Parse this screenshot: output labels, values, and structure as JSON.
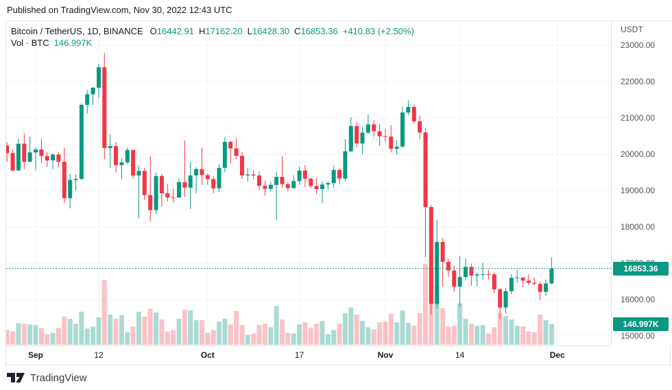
{
  "published_bar": {
    "text": "Published on TradingView.com, Nov 30, 2022 12:43 UTC"
  },
  "legend": {
    "symbol": "Bitcoin / TetherUS, 1D, BINANCE",
    "items": [
      {
        "label": "O",
        "value": "16442.91"
      },
      {
        "label": "H",
        "value": "17162.20"
      },
      {
        "label": "L",
        "value": "16428.30"
      },
      {
        "label": "C",
        "value": "16853.36"
      }
    ],
    "change": "+410.83 (+2.50%)",
    "volume_label": "Vol · BTC",
    "volume_value": "146.997K"
  },
  "price_axis": {
    "currency": "USDT",
    "price_badge": "16853.36",
    "volume_badge": "146.997K"
  },
  "time_axis": {
    "ticks": [
      {
        "label": "Sep",
        "bold": true,
        "day_offset": 0
      },
      {
        "label": "12",
        "bold": false,
        "day_offset": 11
      },
      {
        "label": "Oct",
        "bold": true,
        "day_offset": 30
      },
      {
        "label": "17",
        "bold": false,
        "day_offset": 46
      },
      {
        "label": "Nov",
        "bold": true,
        "day_offset": 61
      },
      {
        "label": "14",
        "bold": false,
        "day_offset": 74
      },
      {
        "label": "Dec",
        "bold": true,
        "day_offset": 91
      }
    ]
  },
  "footer": {
    "brand": "TradingView"
  },
  "colors": {
    "up": "#089981",
    "down": "#f23645",
    "vol_up": "rgba(8,153,129,0.35)",
    "vol_down": "rgba(242,54,69,0.30)",
    "badge": "#089981",
    "grid": "#f0f3fa",
    "border": "#e0e3eb",
    "axis_text": "#4c525e",
    "dark_text": "#131722"
  },
  "chart_data": {
    "type": "candlestick+volume",
    "title": "Bitcoin / TetherUS, 1D, BINANCE",
    "quote_currency": "USDT",
    "ylim": [
      15000,
      23000
    ],
    "y_ticks": [
      23000,
      22000,
      21000,
      20000,
      19000,
      18000,
      17000,
      16000,
      15000
    ],
    "grid": true,
    "last_price": 16853.36,
    "last_ohlc": {
      "o": 16442.91,
      "h": 17162.2,
      "l": 16428.3,
      "c": 16853.36,
      "change": "+410.83 (+2.50%)"
    },
    "last_volume_kBTC": 146.997,
    "columns": [
      "date",
      "open",
      "high",
      "low",
      "close",
      "volume_kBTC"
    ],
    "series": [
      [
        "Aug 27",
        20240,
        20330,
        19800,
        20030,
        105
      ],
      [
        "Aug 28",
        20030,
        20140,
        19520,
        19550,
        95
      ],
      [
        "Aug 29",
        19550,
        20430,
        19550,
        20290,
        155
      ],
      [
        "Aug 30",
        20290,
        20580,
        19590,
        19790,
        150
      ],
      [
        "Aug 31",
        19790,
        20490,
        19790,
        20050,
        145
      ],
      [
        "Sep 1",
        20050,
        20200,
        19561,
        20130,
        140
      ],
      [
        "Sep 2",
        20130,
        20440,
        19755,
        19950,
        120
      ],
      [
        "Sep 3",
        19950,
        20055,
        19660,
        19830,
        75
      ],
      [
        "Sep 4",
        19830,
        20025,
        19588,
        19990,
        85
      ],
      [
        "Sep 5",
        19990,
        20060,
        19635,
        19790,
        120
      ],
      [
        "Sep 6",
        19790,
        20180,
        18654,
        18790,
        200
      ],
      [
        "Sep 7",
        18790,
        19460,
        18510,
        19290,
        185
      ],
      [
        "Sep 8",
        19290,
        19450,
        19000,
        19320,
        150
      ],
      [
        "Sep 9",
        19320,
        21400,
        19292,
        21360,
        235
      ],
      [
        "Sep 10",
        21360,
        21770,
        21120,
        21650,
        115
      ],
      [
        "Sep 11",
        21650,
        21850,
        21350,
        21830,
        130
      ],
      [
        "Sep 12",
        21830,
        22488,
        21550,
        22395,
        195
      ],
      [
        "Sep 13",
        22395,
        22799,
        19860,
        20170,
        460
      ],
      [
        "Sep 14",
        20170,
        20540,
        19620,
        20225,
        215
      ],
      [
        "Sep 15",
        20225,
        20330,
        19495,
        19700,
        185
      ],
      [
        "Sep 16",
        19700,
        19890,
        19320,
        19775,
        210
      ],
      [
        "Sep 17",
        19775,
        20180,
        19725,
        20115,
        90
      ],
      [
        "Sep 18",
        20115,
        20117,
        19330,
        19415,
        130
      ],
      [
        "Sep 19",
        19415,
        19690,
        18235,
        19540,
        235
      ],
      [
        "Sep 20",
        19540,
        19630,
        18740,
        18875,
        200
      ],
      [
        "Sep 21",
        18875,
        19950,
        18150,
        18460,
        255
      ],
      [
        "Sep 22",
        18460,
        19500,
        18360,
        19400,
        230
      ],
      [
        "Sep 23",
        19400,
        19460,
        18565,
        18925,
        180
      ],
      [
        "Sep 24",
        18925,
        19180,
        18700,
        18810,
        95
      ],
      [
        "Sep 25",
        18810,
        19055,
        18670,
        18805,
        105
      ],
      [
        "Sep 26",
        18805,
        19320,
        18805,
        19230,
        185
      ],
      [
        "Sep 27",
        19230,
        20380,
        18830,
        19080,
        250
      ],
      [
        "Sep 28",
        19080,
        19790,
        18490,
        19415,
        245
      ],
      [
        "Sep 29",
        19415,
        19640,
        18920,
        19590,
        175
      ],
      [
        "Sep 30",
        19590,
        20185,
        19160,
        19425,
        175
      ],
      [
        "Oct 1",
        19425,
        19480,
        19160,
        19315,
        85
      ],
      [
        "Oct 2",
        19315,
        19395,
        18920,
        19060,
        105
      ],
      [
        "Oct 3",
        19060,
        19720,
        18960,
        19625,
        165
      ],
      [
        "Oct 4",
        19625,
        20475,
        19500,
        20340,
        185
      ],
      [
        "Oct 5",
        20340,
        20365,
        19745,
        20160,
        145
      ],
      [
        "Oct 6",
        20160,
        20455,
        19870,
        19955,
        240
      ],
      [
        "Oct 7",
        19955,
        20060,
        19320,
        19415,
        140
      ],
      [
        "Oct 8",
        19415,
        19625,
        19240,
        19440,
        70
      ],
      [
        "Oct 9",
        19440,
        19560,
        19310,
        19415,
        80
      ],
      [
        "Oct 10",
        19415,
        19525,
        19020,
        19130,
        140
      ],
      [
        "Oct 11",
        19130,
        19270,
        18860,
        19045,
        150
      ],
      [
        "Oct 12",
        19045,
        19240,
        18965,
        19155,
        125
      ],
      [
        "Oct 13",
        19155,
        19510,
        18190,
        19375,
        275
      ],
      [
        "Oct 14",
        19375,
        19950,
        19070,
        19175,
        180
      ],
      [
        "Oct 15",
        19175,
        19225,
        18975,
        19065,
        85
      ],
      [
        "Oct 16",
        19065,
        19420,
        19060,
        19260,
        80
      ],
      [
        "Oct 17",
        19260,
        19670,
        19155,
        19550,
        145
      ],
      [
        "Oct 18",
        19550,
        19706,
        19100,
        19325,
        160
      ],
      [
        "Oct 19",
        19325,
        19357,
        19065,
        19125,
        120
      ],
      [
        "Oct 20",
        19125,
        19345,
        18905,
        19040,
        150
      ],
      [
        "Oct 21",
        19040,
        19250,
        18650,
        19165,
        170
      ],
      [
        "Oct 22",
        19165,
        19255,
        19025,
        19205,
        75
      ],
      [
        "Oct 23",
        19205,
        19695,
        19070,
        19570,
        105
      ],
      [
        "Oct 24",
        19570,
        19600,
        19175,
        19330,
        150
      ],
      [
        "Oct 25",
        19330,
        20415,
        19255,
        20080,
        225
      ],
      [
        "Oct 26",
        20080,
        21020,
        20055,
        20775,
        265
      ],
      [
        "Oct 27",
        20775,
        20875,
        20190,
        20295,
        215
      ],
      [
        "Oct 28",
        20295,
        20755,
        20000,
        20595,
        170
      ],
      [
        "Oct 29",
        20595,
        21085,
        20550,
        20820,
        125
      ],
      [
        "Oct 30",
        20820,
        20930,
        20480,
        20630,
        110
      ],
      [
        "Oct 31",
        20630,
        20840,
        20225,
        20495,
        160
      ],
      [
        "Nov 1",
        20495,
        20700,
        20330,
        20485,
        165
      ],
      [
        "Nov 2",
        20485,
        20800,
        20050,
        20150,
        220
      ],
      [
        "Nov 3",
        20150,
        20385,
        19990,
        20210,
        160
      ],
      [
        "Nov 4",
        20210,
        21300,
        20170,
        21150,
        245
      ],
      [
        "Nov 5",
        21150,
        21480,
        21070,
        21300,
        155
      ],
      [
        "Nov 6",
        21300,
        21360,
        20860,
        20905,
        135
      ],
      [
        "Nov 7",
        20905,
        21070,
        20410,
        20600,
        225
      ],
      [
        "Nov 8",
        20600,
        20700,
        17166,
        18545,
        575
      ],
      [
        "Nov 9",
        18545,
        18590,
        15588,
        15880,
        555
      ],
      [
        "Nov 10",
        15880,
        18199,
        15755,
        17585,
        415
      ],
      [
        "Nov 11",
        17585,
        17690,
        16361,
        17035,
        260
      ],
      [
        "Nov 12",
        17035,
        17115,
        16625,
        16800,
        130
      ],
      [
        "Nov 13",
        16800,
        16954,
        16229,
        16353,
        135
      ],
      [
        "Nov 14",
        16353,
        17190,
        15815,
        16620,
        295
      ],
      [
        "Nov 15",
        16620,
        17134,
        16530,
        16900,
        185
      ],
      [
        "Nov 16",
        16900,
        16990,
        16378,
        16660,
        150
      ],
      [
        "Nov 17",
        16660,
        16750,
        16360,
        16690,
        135
      ],
      [
        "Nov 18",
        16690,
        17011,
        16546,
        16700,
        140
      ],
      [
        "Nov 19",
        16700,
        16820,
        16550,
        16695,
        80
      ],
      [
        "Nov 20",
        16695,
        16746,
        16176,
        16280,
        125
      ],
      [
        "Nov 21",
        16280,
        16310,
        15476,
        15780,
        230
      ],
      [
        "Nov 22",
        15780,
        16315,
        15616,
        16230,
        205
      ],
      [
        "Nov 23",
        16230,
        16700,
        16150,
        16600,
        180
      ],
      [
        "Nov 24",
        16600,
        16812,
        16455,
        16603,
        135
      ],
      [
        "Nov 25",
        16603,
        16610,
        16342,
        16520,
        130
      ],
      [
        "Nov 26",
        16520,
        16700,
        16386,
        16460,
        95
      ],
      [
        "Nov 27",
        16460,
        16600,
        16400,
        16430,
        90
      ],
      [
        "Nov 28",
        16430,
        16488,
        15995,
        16210,
        215
      ],
      [
        "Nov 29",
        16210,
        16550,
        16100,
        16443,
        175
      ],
      [
        "Nov 30",
        16442.91,
        17162.2,
        16428.3,
        16853.36,
        147
      ]
    ]
  }
}
